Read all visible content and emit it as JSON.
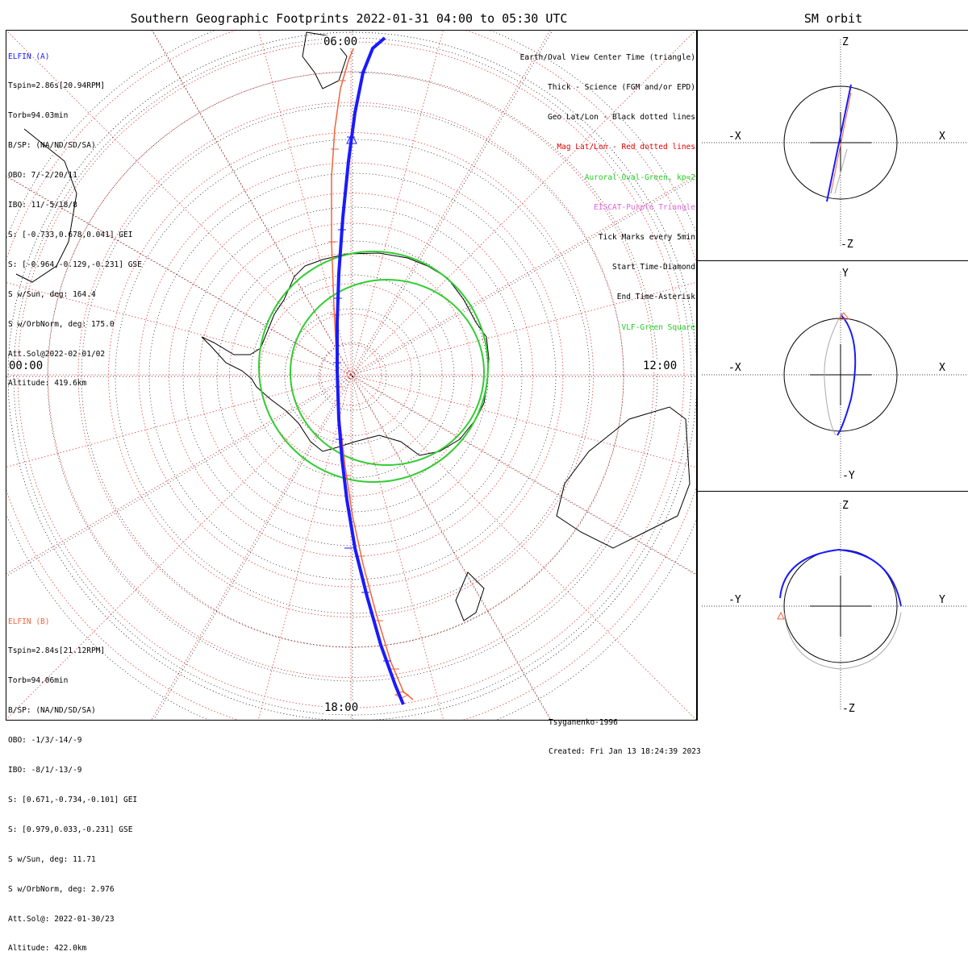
{
  "title": "Southern Geographic Footprints 2022-01-31 04:00 to 05:30 UTC",
  "subtitle": "SM orbit",
  "elfin_a": {
    "name": "ELFIN (A)",
    "color": "#1a1aff",
    "lines": [
      "Tspin=2.86s[20.94RPM]",
      "Torb=94.03min",
      "B/SP: (NA/ND/SD/SA)",
      "OBO: 7/-2/20/11",
      "IBO: 11/-5/18/8",
      "S: [-0.733,0.678,0.041] GEI",
      "S: [-0.964,-0.129,-0.231] GSE",
      "S w/Sun, deg: 164.4",
      "S w/OrbNorm, deg: 175.0",
      "Att.Sol@2022-02-01/02",
      "Altitude: 419.6km"
    ]
  },
  "elfin_b": {
    "name": "ELFIN (B)",
    "color": "#f0643c",
    "lines": [
      "Tspin=2.84s[21.12RPM]",
      "Torb=94.06min",
      "B/SP: (NA/ND/SD/SA)",
      "OBO: -1/3/-14/-9",
      "IBO: -8/1/-13/-9",
      "S: [0.671,-0.734,-0.101] GEI",
      "S: [0.979,0.033,-0.231] GSE",
      "S w/Sun, deg: 11.71",
      "S w/OrbNorm, deg: 2.976",
      "Att.Sol@: 2022-01-30/23",
      "Altitude: 422.0km"
    ]
  },
  "legend": [
    {
      "text": "Earth/Oval View Center Time (triangle)",
      "color": "#000000"
    },
    {
      "text": "Thick - Science (FGM and/or EPD)",
      "color": "#000000"
    },
    {
      "text": "Geo Lat/Lon - Black dotted lines",
      "color": "#000000"
    },
    {
      "text": "Mag Lat/Lon - Red dotted lines",
      "color": "#e00000"
    },
    {
      "text": "Auroral Oval-Green, kp=2",
      "color": "#22cc22"
    },
    {
      "text": "EISCAT-Purple Triangle",
      "color": "#dd66dd"
    },
    {
      "text": "Tick Marks every 5min",
      "color": "#000000"
    },
    {
      "text": "Start Time-Diamond",
      "color": "#000000"
    },
    {
      "text": "End Time-Asterisk",
      "color": "#000000"
    },
    {
      "text": "VLF-Green Square",
      "color": "#22cc22"
    }
  ],
  "mlt_labels": {
    "top": "06:00",
    "left": "00:00",
    "right": "12:00",
    "bottom": "18:00"
  },
  "footer": {
    "model": "Tsyganenko-1996",
    "created": "Created: Fri Jan 13 18:24:39 2023"
  },
  "sm_panels": [
    {
      "name": "xz",
      "top": "Z",
      "bottom": "-Z",
      "left": "-X",
      "right": "X"
    },
    {
      "name": "xy",
      "top": "Y",
      "bottom": "-Y",
      "left": "-X",
      "right": "X"
    },
    {
      "name": "yz",
      "top": "Z",
      "bottom": "-Z",
      "left": "-Y",
      "right": "Y"
    }
  ],
  "colors": {
    "elfin_a": "#1a1aff",
    "elfin_b": "#f0643c",
    "oval": "#33cc33",
    "mag_grid": "#e04040",
    "geo_grid": "#000000",
    "orbit_gray": "#aaaaaa"
  },
  "chart_data": [
    {
      "type": "polar-map",
      "title": "Southern Geographic Footprints 2022-01-31 04:00 to 05:30 UTC",
      "projection": "south-polar stereographic",
      "mlt_axis_labels": [
        "06:00",
        "12:00",
        "18:00",
        "00:00"
      ],
      "series": [
        {
          "name": "ELFIN (A)",
          "color": "#1a1aff",
          "science_segment": true,
          "tick_interval_min": 5
        },
        {
          "name": "ELFIN (B)",
          "color": "#f0643c",
          "science_segment": false,
          "tick_interval_min": 5
        }
      ],
      "auroral_oval_kp": 2
    },
    {
      "type": "scatter",
      "title": "SM orbit",
      "panels": [
        "X-Z",
        "X-Y",
        "Y-Z"
      ],
      "series": [
        {
          "name": "ELFIN (A)",
          "color": "#1a1aff"
        },
        {
          "name": "ELFIN (B)",
          "color": "#f0643c"
        }
      ]
    }
  ]
}
